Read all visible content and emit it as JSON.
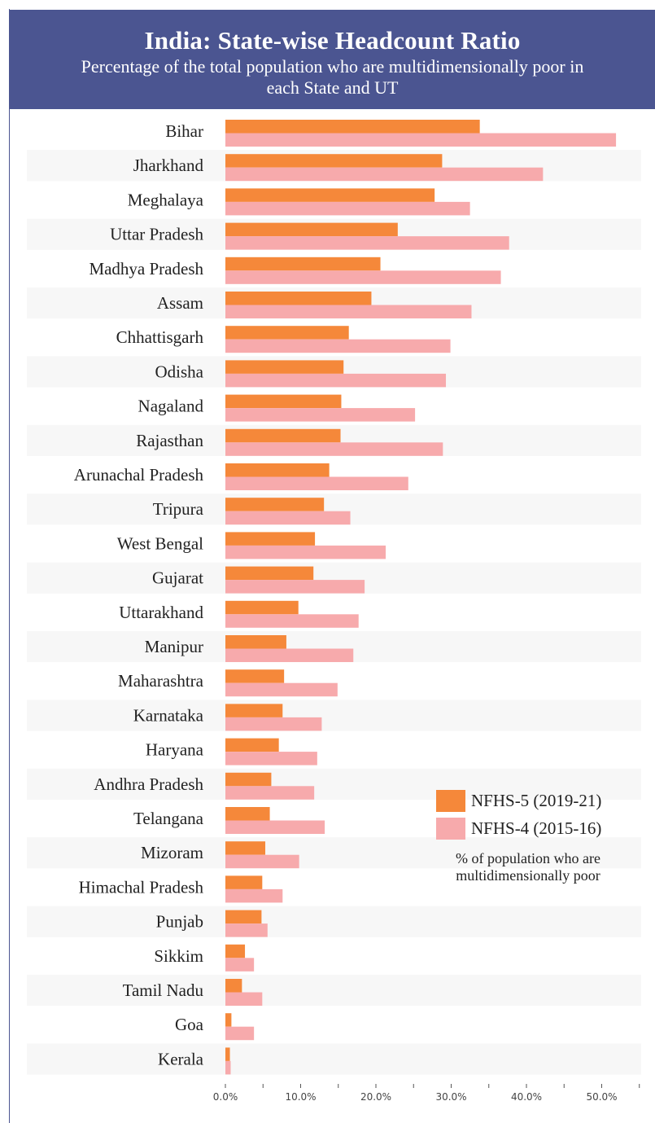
{
  "chart_data": {
    "type": "bar",
    "orientation": "horizontal",
    "title": "India: State-wise Headcount Ratio",
    "subtitle": "Percentage of the total population who are multidimensionally poor in each State and UT",
    "categories": [
      "Bihar",
      "Jharkhand",
      "Meghalaya",
      "Uttar Pradesh",
      "Madhya Pradesh",
      "Assam",
      "Chhattisgarh",
      "Odisha",
      "Nagaland",
      "Rajasthan",
      "Arunachal Pradesh",
      "Tripura",
      "West Bengal",
      "Gujarat",
      "Uttarakhand",
      "Manipur",
      "Maharashtra",
      "Karnataka",
      "Haryana",
      "Andhra Pradesh",
      "Telangana",
      "Mizoram",
      "Himachal Pradesh",
      "Punjab",
      "Sikkim",
      "Tamil Nadu",
      "Goa",
      "Kerala"
    ],
    "series": [
      {
        "name": "NFHS-5 (2019-21)",
        "color": "#f5883a",
        "values": [
          33.8,
          28.8,
          27.8,
          22.9,
          20.6,
          19.4,
          16.4,
          15.7,
          15.4,
          15.3,
          13.8,
          13.1,
          11.9,
          11.7,
          9.7,
          8.1,
          7.8,
          7.6,
          7.1,
          6.1,
          5.9,
          5.3,
          4.9,
          4.8,
          2.6,
          2.2,
          0.8,
          0.6
        ]
      },
      {
        "name": "NFHS-4 (2015-16)",
        "color": "#f7aaac",
        "values": [
          51.9,
          42.2,
          32.5,
          37.7,
          36.6,
          32.7,
          29.9,
          29.3,
          25.2,
          28.9,
          24.3,
          16.6,
          21.3,
          18.5,
          17.7,
          17.0,
          14.9,
          12.8,
          12.2,
          11.8,
          13.2,
          9.8,
          7.6,
          5.6,
          3.8,
          4.9,
          3.8,
          0.7
        ]
      }
    ],
    "x_ticks": [
      "0.0%",
      "10.0%",
      "20.0%",
      "30.0%",
      "40.0%",
      "50.0%"
    ],
    "xlim": [
      0,
      55
    ],
    "legend_placement": "bottom-right",
    "legend_note": "% of population who are multidimensionally poor"
  }
}
